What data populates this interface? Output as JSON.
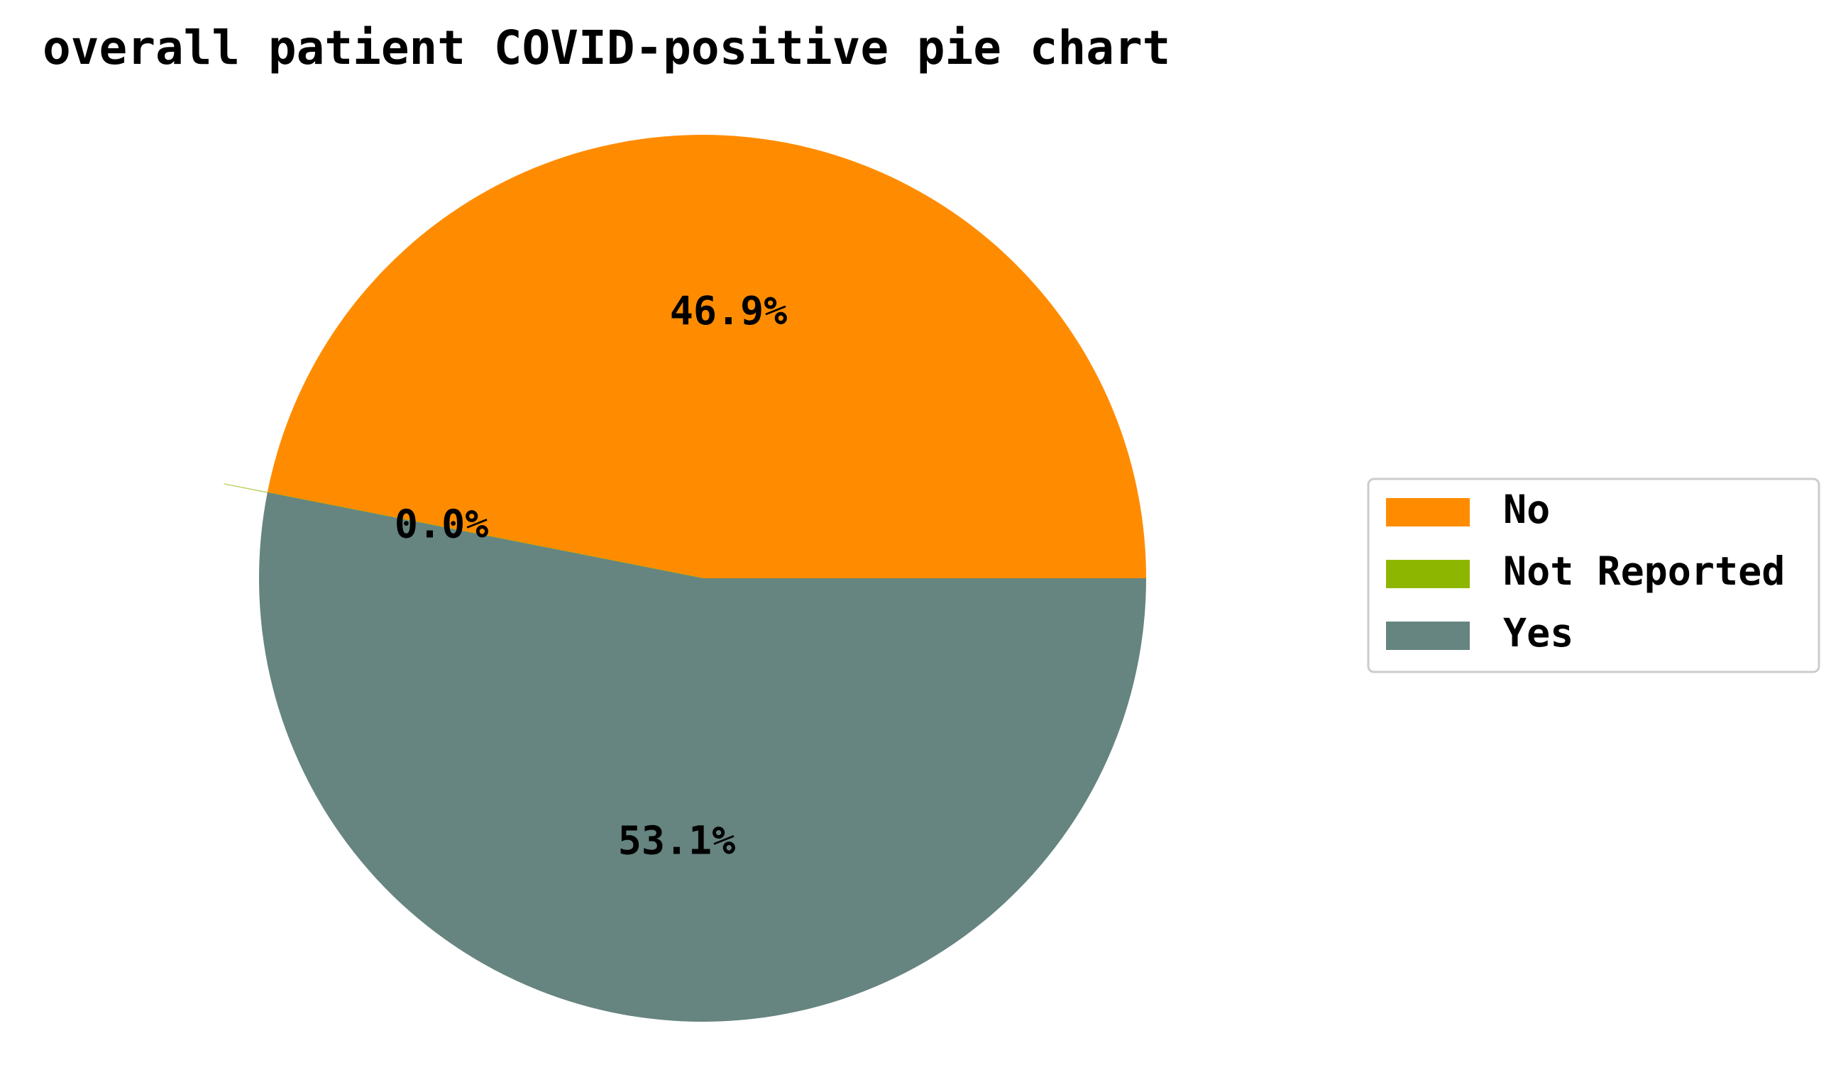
{
  "chart_data": {
    "type": "pie",
    "title": "overall patient COVID-positive pie chart",
    "categories": [
      "No",
      "Not Reported",
      "Yes"
    ],
    "values": [
      46.9,
      0.0,
      53.1
    ],
    "percent_labels": [
      "46.9%",
      "0.0%",
      "53.1%"
    ],
    "colors": [
      "#ff8c00",
      "#8db600",
      "#668480"
    ],
    "legend_placement": "center-right"
  }
}
